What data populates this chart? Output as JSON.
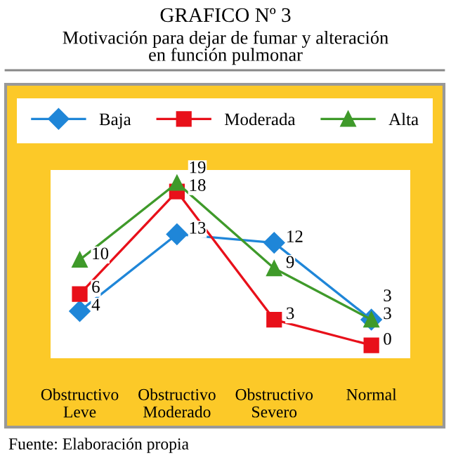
{
  "chart_data": {
    "type": "line",
    "title": "GRAFICO Nº 3",
    "subtitle": "Motivación para dejar de fumar y alteración\nen función pulmonar",
    "categories": [
      "Obstructivo\nLeve",
      "Obstructivo\nModerado",
      "Obstructivo\nSevero",
      "Normal"
    ],
    "series": [
      {
        "name": "Baja",
        "color": "#1f86d8",
        "marker": "diamond",
        "values": [
          4,
          13,
          12,
          3
        ]
      },
      {
        "name": "Moderada",
        "color": "#e8101a",
        "marker": "square",
        "values": [
          6,
          18,
          3,
          0
        ]
      },
      {
        "name": "Alta",
        "color": "#3f9a2a",
        "marker": "triangle",
        "values": [
          10,
          19,
          9,
          3
        ]
      }
    ],
    "data_labels": true,
    "legend": "top",
    "annotations": [
      "Fuente: Elaboración propia"
    ]
  }
}
